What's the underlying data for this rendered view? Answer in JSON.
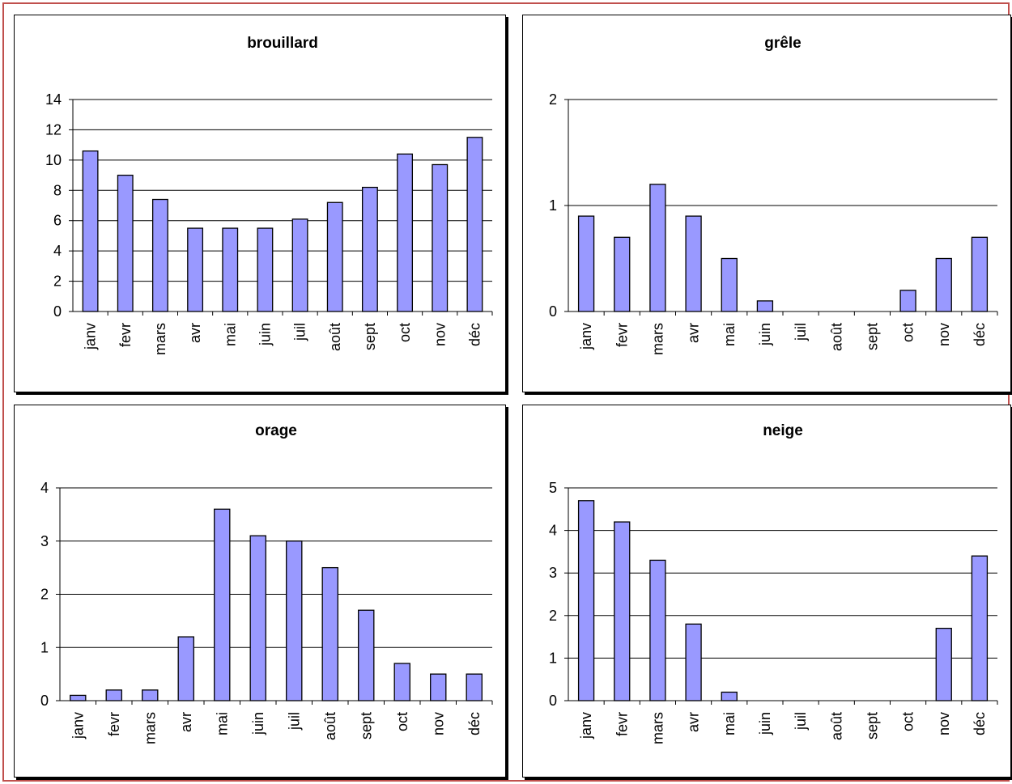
{
  "colors": {
    "frame": "#c0504d",
    "bar": "#9999ff",
    "bar_stroke": "#000000",
    "grid": "#000000"
  },
  "chart_data": [
    {
      "type": "bar",
      "title": "brouillard",
      "categories": [
        "janv",
        "fevr",
        "mars",
        "avr",
        "mai",
        "juin",
        "juil",
        "août",
        "sept",
        "oct",
        "nov",
        "déc"
      ],
      "values": [
        10.6,
        9.0,
        7.4,
        5.5,
        5.5,
        5.5,
        6.1,
        7.2,
        8.2,
        10.4,
        9.7,
        11.5
      ],
      "yticks": [
        "0",
        "2",
        "4",
        "6",
        "8",
        "10",
        "12",
        "14"
      ],
      "ylim": [
        0,
        14
      ],
      "grid": true
    },
    {
      "type": "bar",
      "title": "grêle",
      "categories": [
        "janv",
        "fevr",
        "mars",
        "avr",
        "mai",
        "juin",
        "juil",
        "août",
        "sept",
        "oct",
        "nov",
        "déc"
      ],
      "values": [
        0.9,
        0.7,
        1.2,
        0.9,
        0.5,
        0.1,
        0,
        0,
        0,
        0.2,
        0.5,
        0.7
      ],
      "yticks": [
        "0",
        "1",
        "2"
      ],
      "ylim": [
        0,
        2
      ],
      "grid": true
    },
    {
      "type": "bar",
      "title": "orage",
      "categories": [
        "janv",
        "fevr",
        "mars",
        "avr",
        "mai",
        "juin",
        "juil",
        "août",
        "sept",
        "oct",
        "nov",
        "déc"
      ],
      "values": [
        0.1,
        0.2,
        0.2,
        1.2,
        3.6,
        3.1,
        3.0,
        2.5,
        1.7,
        0.7,
        0.5,
        0.5
      ],
      "yticks": [
        "0",
        "1",
        "2",
        "3",
        "4"
      ],
      "ylim": [
        0,
        4
      ],
      "grid": true
    },
    {
      "type": "bar",
      "title": "neige",
      "categories": [
        "janv",
        "fevr",
        "mars",
        "avr",
        "mai",
        "juin",
        "juil",
        "août",
        "sept",
        "oct",
        "nov",
        "déc"
      ],
      "values": [
        4.7,
        4.2,
        3.3,
        1.8,
        0.2,
        0,
        0,
        0,
        0,
        0,
        1.7,
        3.4
      ],
      "yticks": [
        "0",
        "1",
        "2",
        "3",
        "4",
        "5"
      ],
      "ylim": [
        0,
        5
      ],
      "grid": true
    }
  ]
}
